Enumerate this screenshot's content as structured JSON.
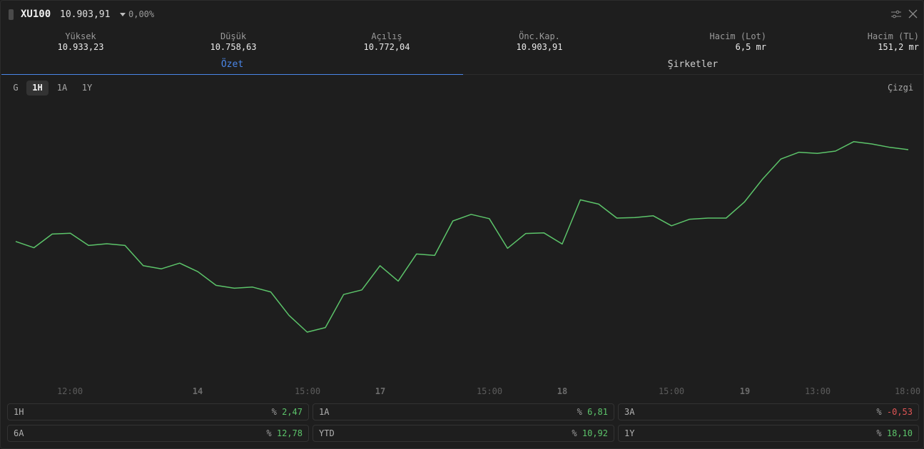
{
  "header": {
    "symbol": "XU100",
    "price": "10.903,91",
    "change": "0,00%"
  },
  "stats": [
    {
      "label": "Yüksek",
      "value": "10.933,23"
    },
    {
      "label": "Düşük",
      "value": "10.758,63"
    },
    {
      "label": "Açılış",
      "value": "10.772,04"
    },
    {
      "label": "Önc.Kap.",
      "value": "10.903,91"
    },
    {
      "label": "Hacim (Lot)",
      "value": "6,5 mr"
    },
    {
      "label": "Hacim (TL)",
      "value": "151,2 mr"
    }
  ],
  "tabs": [
    "Özet",
    "Şirketler"
  ],
  "periods": [
    "G",
    "1H",
    "1A",
    "1Y"
  ],
  "active_period": "1H",
  "chart_type_label": "Çizgi",
  "colors": {
    "line": "#5cc46a",
    "accent": "#4a86e8",
    "negative": "#e05555"
  },
  "chart_data": {
    "type": "line",
    "x_ticks": [
      "12:00",
      "14",
      "15:00",
      "17",
      "15:00",
      "18",
      "15:00",
      "19",
      "13:00",
      "18:00"
    ],
    "bold_ticks": [
      "14",
      "17",
      "18",
      "19"
    ],
    "ylim": [
      0,
      1
    ],
    "values": [
      0.503,
      0.481,
      0.529,
      0.532,
      0.489,
      0.495,
      0.489,
      0.418,
      0.407,
      0.427,
      0.397,
      0.349,
      0.339,
      0.343,
      0.326,
      0.244,
      0.185,
      0.201,
      0.317,
      0.333,
      0.418,
      0.364,
      0.459,
      0.454,
      0.575,
      0.598,
      0.583,
      0.479,
      0.531,
      0.533,
      0.494,
      0.649,
      0.634,
      0.585,
      0.587,
      0.593,
      0.558,
      0.581,
      0.585,
      0.585,
      0.641,
      0.722,
      0.792,
      0.816,
      0.812,
      0.82,
      0.853,
      0.845,
      0.833,
      0.825
    ]
  },
  "performance": [
    {
      "label": "1H",
      "prefix": "%",
      "value": "2,47",
      "sign": "pos"
    },
    {
      "label": "1A",
      "prefix": "%",
      "value": "6,81",
      "sign": "pos"
    },
    {
      "label": "3A",
      "prefix": "%",
      "value": "-0,53",
      "sign": "neg"
    },
    {
      "label": "6A",
      "prefix": "%",
      "value": "12,78",
      "sign": "pos"
    },
    {
      "label": "YTD",
      "prefix": "%",
      "value": "10,92",
      "sign": "pos"
    },
    {
      "label": "1Y",
      "prefix": "%",
      "value": "18,10",
      "sign": "pos"
    }
  ]
}
